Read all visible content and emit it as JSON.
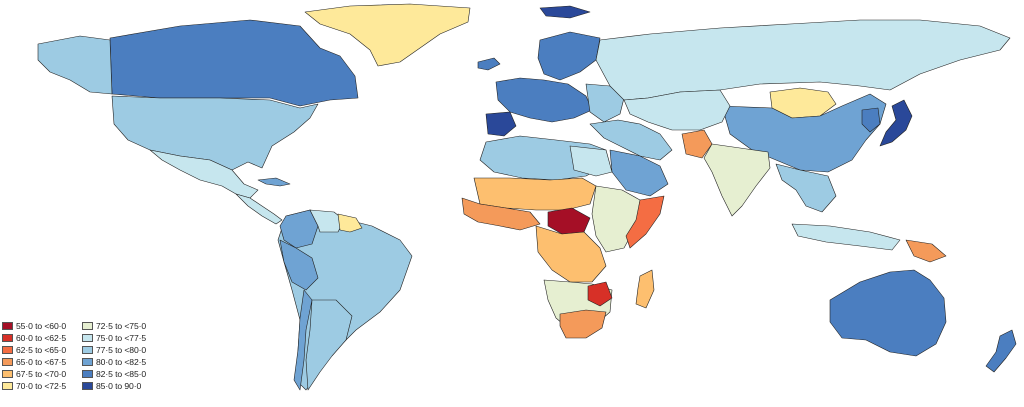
{
  "legend": {
    "items": [
      {
        "label": "55·0 to <60·0",
        "color": "#a50f26"
      },
      {
        "label": "60·0 to <62·5",
        "color": "#d73027"
      },
      {
        "label": "62·5 to <65·0",
        "color": "#f46d43"
      },
      {
        "label": "65·0 to <67·5",
        "color": "#f49a5a"
      },
      {
        "label": "67·5 to <70·0",
        "color": "#fdbf6f"
      },
      {
        "label": "70·0 to <72·5",
        "color": "#fee99a"
      },
      {
        "label": "72·5 to <75·0",
        "color": "#e6efd1"
      },
      {
        "label": "75·0 to <77·5",
        "color": "#c6e6ee"
      },
      {
        "label": "77·5 to <80·0",
        "color": "#9dcbe3"
      },
      {
        "label": "80·0 to <82·5",
        "color": "#6fa3d3"
      },
      {
        "label": "82·5 to <85·0",
        "color": "#4b7ec0"
      },
      {
        "label": "85·0 to 90·0",
        "color": "#2a4899"
      }
    ]
  },
  "regions": [
    {
      "name": "greenland",
      "color": "#fee99a"
    },
    {
      "name": "canada",
      "color": "#4b7ec0"
    },
    {
      "name": "alaska",
      "color": "#9dcbe3"
    },
    {
      "name": "usa",
      "color": "#9dcbe3"
    },
    {
      "name": "mexico",
      "color": "#c6e6ee"
    },
    {
      "name": "central-america",
      "color": "#c6e6ee"
    },
    {
      "name": "cuba",
      "color": "#6fa3d3"
    },
    {
      "name": "south-america",
      "color": "#9dcbe3"
    },
    {
      "name": "colombia",
      "color": "#6fa3d3"
    },
    {
      "name": "venezuela",
      "color": "#c6e6ee"
    },
    {
      "name": "guyana",
      "color": "#fee99a"
    },
    {
      "name": "peru",
      "color": "#6fa3d3"
    },
    {
      "name": "chile",
      "color": "#6fa3d3"
    },
    {
      "name": "argentina",
      "color": "#9dcbe3"
    },
    {
      "name": "iceland",
      "color": "#4b7ec0"
    },
    {
      "name": "scandinavia",
      "color": "#4b7ec0"
    },
    {
      "name": "western-europe",
      "color": "#4b7ec0"
    },
    {
      "name": "iberia",
      "color": "#2a4899"
    },
    {
      "name": "eastern-europe",
      "color": "#9dcbe3"
    },
    {
      "name": "russia",
      "color": "#c6e6ee"
    },
    {
      "name": "mongolia",
      "color": "#fee99a"
    },
    {
      "name": "china",
      "color": "#6fa3d3"
    },
    {
      "name": "korea",
      "color": "#4b7ec0"
    },
    {
      "name": "japan",
      "color": "#2a4899"
    },
    {
      "name": "central-asia",
      "color": "#c6e6ee"
    },
    {
      "name": "middle-east",
      "color": "#9dcbe3"
    },
    {
      "name": "saudi-arabia",
      "color": "#6fa3d3"
    },
    {
      "name": "afghanistan",
      "color": "#f49a5a"
    },
    {
      "name": "india",
      "color": "#e6efd1"
    },
    {
      "name": "southeast-asia",
      "color": "#9dcbe3"
    },
    {
      "name": "indonesia",
      "color": "#c6e6ee"
    },
    {
      "name": "png",
      "color": "#f49a5a"
    },
    {
      "name": "australia",
      "color": "#4b7ec0"
    },
    {
      "name": "new-zealand",
      "color": "#4b7ec0"
    },
    {
      "name": "north-africa",
      "color": "#9dcbe3"
    },
    {
      "name": "egypt",
      "color": "#c6e6ee"
    },
    {
      "name": "sahel",
      "color": "#fdbf6f"
    },
    {
      "name": "west-africa",
      "color": "#f49a5a"
    },
    {
      "name": "car",
      "color": "#a50f26"
    },
    {
      "name": "east-africa",
      "color": "#e6efd1"
    },
    {
      "name": "somalia",
      "color": "#f46d43"
    },
    {
      "name": "central-africa",
      "color": "#fdbf6f"
    },
    {
      "name": "southern-africa",
      "color": "#e6efd1"
    },
    {
      "name": "south-africa",
      "color": "#f49a5a"
    },
    {
      "name": "zimbabwe",
      "color": "#d73027"
    },
    {
      "name": "madagascar",
      "color": "#fdbf6f"
    },
    {
      "name": "svalbard",
      "color": "#2a4899"
    }
  ]
}
